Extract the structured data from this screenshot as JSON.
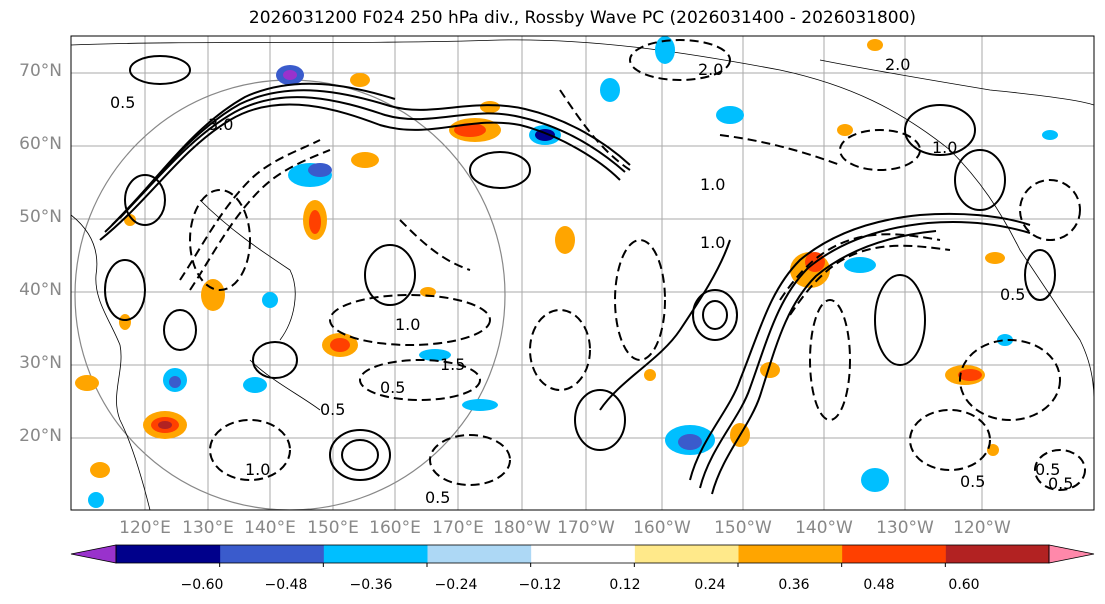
{
  "title": "2026031200 F024 250 hPa div., Rossby Wave PC (2026031400 - 2026031800)",
  "lat_labels": [
    "70°N",
    "60°N",
    "50°N",
    "40°N",
    "30°N",
    "20°N"
  ],
  "lon_labels": [
    "120°E",
    "130°E",
    "140°E",
    "150°E",
    "160°E",
    "170°E",
    "180°W",
    "170°W",
    "160°W",
    "150°W",
    "140°W",
    "130°W",
    "120°W"
  ],
  "colorbar": {
    "ticks": [
      "−0.60",
      "−0.48",
      "−0.36",
      "−0.24",
      "−0.12",
      "0.12",
      "0.24",
      "0.36",
      "0.48",
      "0.60"
    ],
    "colors": [
      "#9932cc",
      "#00008b",
      "#3a5bcc",
      "#00bfff",
      "#add8f5",
      "#ffffff",
      "#ffe98a",
      "#ffa500",
      "#ff4000",
      "#b22222",
      "#ff88aa"
    ]
  },
  "contour_labels": [
    "0.5",
    "3.0",
    "1.0",
    "0.5",
    "2.0",
    "1.0",
    "0.5",
    "1.0",
    "0.5",
    "1.0",
    "0.5",
    "1.5",
    "0.5",
    "0.5",
    "2.0",
    "1.0",
    "0.5"
  ]
}
